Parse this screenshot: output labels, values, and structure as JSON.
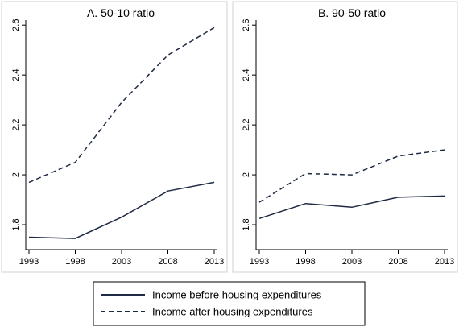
{
  "chart_data": [
    {
      "type": "line",
      "title": "A. 50-10 ratio",
      "x": [
        1993,
        1998,
        2003,
        2008,
        2013
      ],
      "ylim": [
        1.7,
        2.62
      ],
      "yticks": [
        "1.8",
        "2",
        "2.2",
        "2.4",
        "2.6"
      ],
      "xticks": [
        "1993",
        "1998",
        "2003",
        "2008",
        "2013"
      ],
      "grid": false,
      "series": [
        {
          "name": "Income before housing expenditures",
          "style": "solid",
          "values": [
            1.75,
            1.745,
            1.83,
            1.935,
            1.97
          ]
        },
        {
          "name": "Income after housing expenditures",
          "style": "dashed",
          "values": [
            1.97,
            2.05,
            2.29,
            2.48,
            2.59
          ]
        }
      ]
    },
    {
      "type": "line",
      "title": "B. 90-50 ratio",
      "x": [
        1993,
        1998,
        2003,
        2008,
        2013
      ],
      "ylim": [
        1.7,
        2.62
      ],
      "yticks": [
        "1.8",
        "2",
        "2.2",
        "2.4",
        "2.6"
      ],
      "xticks": [
        "1993",
        "1998",
        "2003",
        "2008",
        "2013"
      ],
      "grid": false,
      "series": [
        {
          "name": "Income before housing expenditures",
          "style": "solid",
          "values": [
            1.825,
            1.885,
            1.87,
            1.91,
            1.915
          ]
        },
        {
          "name": "Income after housing expenditures",
          "style": "dashed",
          "values": [
            1.89,
            2.005,
            2.0,
            2.075,
            2.1
          ]
        }
      ]
    }
  ],
  "legend": {
    "position": "bottom-center",
    "items": [
      {
        "label": "Income before housing expenditures",
        "style": "solid"
      },
      {
        "label": "Income after housing expenditures",
        "style": "dashed"
      }
    ]
  },
  "colors": {
    "line": "#1f2a44",
    "axis": "#000000",
    "frame": "#d0d0d0"
  }
}
